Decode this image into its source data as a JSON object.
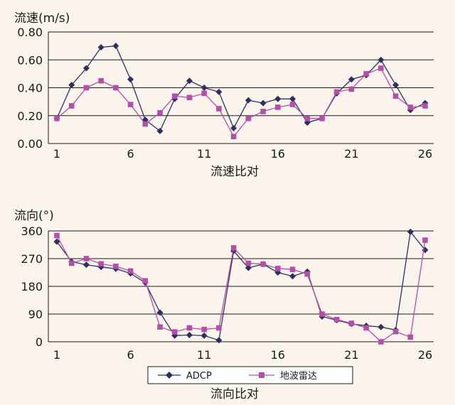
{
  "colors": {
    "background": "#fbf4ec",
    "adcp": "#2e2f61",
    "radar": "#b24fa8",
    "grid": "#1a1a1a"
  },
  "legend": {
    "adcp_label": "ADCP",
    "radar_label": "地波雷达"
  },
  "chart_data": [
    {
      "type": "line",
      "title": "",
      "ylabel": "流速(m/s)",
      "xlabel": "流速比对",
      "x": [
        1,
        2,
        3,
        4,
        5,
        6,
        7,
        8,
        9,
        10,
        11,
        12,
        13,
        14,
        15,
        16,
        17,
        18,
        19,
        20,
        21,
        22,
        23,
        24,
        25,
        26
      ],
      "xticks": [
        1,
        6,
        11,
        16,
        21,
        26
      ],
      "ylim": [
        0,
        0.8
      ],
      "yticks": [
        0,
        0.2,
        0.4,
        0.6,
        0.8
      ],
      "ytick_labels": [
        "0.00",
        "0.20",
        "0.40",
        "0.60",
        "0.80"
      ],
      "grid": "horizontal",
      "series": [
        {
          "name": "ADCP",
          "marker": "diamond",
          "values": [
            0.18,
            0.42,
            0.54,
            0.69,
            0.7,
            0.46,
            0.17,
            0.09,
            0.32,
            0.45,
            0.4,
            0.37,
            0.11,
            0.31,
            0.29,
            0.32,
            0.32,
            0.15,
            0.18,
            0.36,
            0.46,
            0.49,
            0.6,
            0.42,
            0.24,
            0.29
          ]
        },
        {
          "name": "地波雷达",
          "marker": "square",
          "values": [
            0.18,
            0.27,
            0.4,
            0.45,
            0.4,
            0.28,
            0.14,
            0.22,
            0.34,
            0.33,
            0.36,
            0.25,
            0.05,
            0.18,
            0.23,
            0.26,
            0.28,
            0.18,
            0.18,
            0.37,
            0.39,
            0.5,
            0.54,
            0.34,
            0.26,
            0.27
          ]
        }
      ]
    },
    {
      "type": "line",
      "title": "",
      "ylabel": "流向(°)",
      "xlabel": "流向比对",
      "x": [
        1,
        2,
        3,
        4,
        5,
        6,
        7,
        8,
        9,
        10,
        11,
        12,
        13,
        14,
        15,
        16,
        17,
        18,
        19,
        20,
        21,
        22,
        23,
        24,
        25,
        26
      ],
      "xticks": [
        1,
        6,
        11,
        16,
        21,
        26
      ],
      "ylim": [
        0,
        360
      ],
      "yticks": [
        0,
        90,
        180,
        270,
        360
      ],
      "ytick_labels": [
        "0",
        "90",
        "180",
        "270",
        "360"
      ],
      "grid": "horizontal",
      "legend_position": "bottom",
      "series": [
        {
          "name": "ADCP",
          "marker": "diamond",
          "values": [
            325,
            260,
            250,
            243,
            237,
            222,
            192,
            95,
            20,
            22,
            20,
            5,
            295,
            240,
            252,
            225,
            213,
            228,
            82,
            70,
            58,
            52,
            48,
            38,
            357,
            298
          ]
        },
        {
          "name": "地波雷达",
          "marker": "square",
          "values": [
            345,
            255,
            270,
            253,
            245,
            230,
            198,
            48,
            32,
            45,
            40,
            45,
            305,
            255,
            252,
            238,
            235,
            220,
            90,
            72,
            60,
            45,
            0,
            33,
            15,
            330
          ]
        }
      ]
    }
  ]
}
